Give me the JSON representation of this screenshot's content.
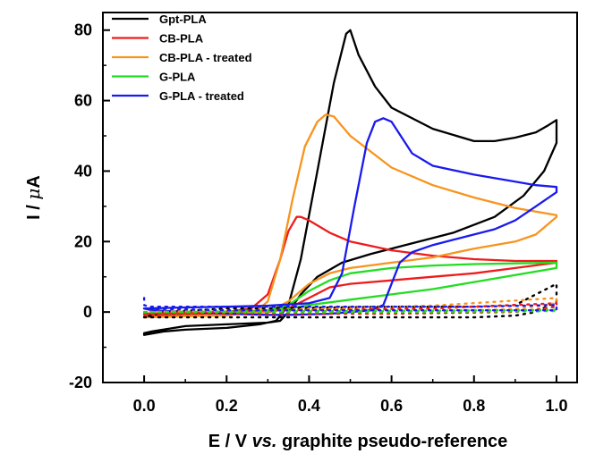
{
  "chart_data": {
    "type": "line",
    "xlabel_parts": [
      "E / V ",
      "vs.",
      " graphite pseudo-reference"
    ],
    "ylabel_main": "I / ",
    "ylabel_mu": "μ",
    "ylabel_unit": "A",
    "xlim": [
      -0.1,
      1.05
    ],
    "ylim": [
      -20,
      85
    ],
    "xticks": [
      0.0,
      0.2,
      0.4,
      0.6,
      0.8,
      1.0
    ],
    "xtick_labels": [
      "0.0",
      "0.2",
      "0.4",
      "0.6",
      "0.8",
      "1.0"
    ],
    "yticks": [
      -20,
      0,
      20,
      40,
      60,
      80
    ],
    "ytick_labels": [
      "-20",
      "0",
      "20",
      "40",
      "60",
      "80"
    ],
    "legend_position": "top-left",
    "series": [
      {
        "name": "Gpt-PLA",
        "color": "#000000",
        "x": [
          0.0,
          0.05,
          0.1,
          0.2,
          0.28,
          0.32,
          0.35,
          0.38,
          0.42,
          0.46,
          0.49,
          0.5,
          0.52,
          0.56,
          0.6,
          0.7,
          0.8,
          0.85,
          0.9,
          0.95,
          0.98,
          1.0,
          1.0,
          0.97,
          0.92,
          0.85,
          0.75,
          0.65,
          0.55,
          0.48,
          0.42,
          0.38,
          0.35,
          0.33,
          0.3,
          0.2,
          0.1,
          0.02,
          0.0,
          0.0
        ],
        "y": [
          -6.5,
          -5.5,
          -5,
          -4.5,
          -3.5,
          -2.5,
          2,
          15,
          40,
          65,
          79,
          80,
          73,
          64,
          58,
          52,
          48.5,
          48.5,
          49.5,
          51,
          53,
          54.5,
          48,
          40,
          33,
          27,
          22.5,
          19.5,
          16.5,
          14,
          10,
          5,
          0,
          -2.5,
          -3,
          -3.5,
          -4,
          -5.5,
          -6,
          -6.5
        ]
      },
      {
        "name": "CB-PLA",
        "color": "#ee1c1c",
        "x": [
          0.0,
          0.1,
          0.2,
          0.26,
          0.3,
          0.33,
          0.35,
          0.37,
          0.38,
          0.4,
          0.45,
          0.5,
          0.6,
          0.7,
          0.8,
          0.9,
          1.0,
          1.0,
          0.9,
          0.8,
          0.7,
          0.6,
          0.5,
          0.45,
          0.4,
          0.35,
          0.3,
          0.2,
          0.1,
          0.0,
          0.0
        ],
        "y": [
          -1,
          -0.5,
          0,
          1,
          5,
          15,
          23,
          27,
          27,
          26,
          22.5,
          20,
          17.5,
          16,
          15,
          14.5,
          14.5,
          14,
          12.5,
          11,
          10,
          9,
          8,
          7,
          4,
          1,
          0,
          -0.5,
          -0.8,
          -1,
          -1
        ]
      },
      {
        "name": "CB-PLA - treated",
        "color": "#f7941d",
        "x": [
          0.0,
          0.1,
          0.2,
          0.27,
          0.3,
          0.33,
          0.36,
          0.39,
          0.42,
          0.44,
          0.46,
          0.5,
          0.6,
          0.7,
          0.8,
          0.9,
          1.0,
          1.0,
          0.95,
          0.9,
          0.8,
          0.7,
          0.6,
          0.5,
          0.45,
          0.4,
          0.35,
          0.3,
          0.2,
          0.1,
          0.0,
          0.0
        ],
        "y": [
          -1.5,
          -1.2,
          -1,
          0,
          3,
          15,
          32,
          47,
          54,
          56,
          55.5,
          50,
          41,
          36,
          32.5,
          29.5,
          27.5,
          27,
          22,
          20,
          18,
          15.5,
          14,
          12.5,
          11,
          8,
          3,
          0,
          -0.8,
          -1.2,
          -1.5,
          -1.5
        ]
      },
      {
        "name": "G-PLA",
        "color": "#22dd22",
        "x": [
          0.0,
          0.1,
          0.2,
          0.3,
          0.35,
          0.4,
          0.45,
          0.5,
          0.6,
          0.7,
          0.8,
          0.9,
          1.0,
          1.0,
          0.9,
          0.8,
          0.7,
          0.6,
          0.5,
          0.4,
          0.35,
          0.3,
          0.2,
          0.1,
          0.0,
          0.0
        ],
        "y": [
          -0.5,
          -0.2,
          0,
          0.5,
          2,
          6,
          9,
          11,
          12.5,
          13.2,
          13.6,
          13.8,
          14,
          12.5,
          10.5,
          8.5,
          6.5,
          5,
          3.5,
          2,
          1,
          0.5,
          0,
          -0.3,
          -0.5,
          -0.5
        ]
      },
      {
        "name": "G-PLA - treated",
        "color": "#1a1aee",
        "x": [
          0.0,
          0.1,
          0.2,
          0.3,
          0.4,
          0.45,
          0.48,
          0.51,
          0.54,
          0.56,
          0.58,
          0.6,
          0.65,
          0.7,
          0.8,
          0.9,
          0.95,
          1.0,
          1.0,
          0.95,
          0.9,
          0.85,
          0.8,
          0.75,
          0.7,
          0.65,
          0.62,
          0.6,
          0.58,
          0.55,
          0.45,
          0.35,
          0.3,
          0.2,
          0.1,
          0.02,
          0.0,
          0.0
        ],
        "y": [
          1,
          1.3,
          1.5,
          1.8,
          2.5,
          4,
          11,
          30,
          48,
          54,
          55,
          54,
          45,
          41.5,
          39,
          37,
          36,
          35.5,
          34,
          30,
          26,
          23.5,
          22,
          20.5,
          19,
          17,
          14,
          8,
          2,
          0.5,
          -0.5,
          -0.8,
          -0.8,
          -0.5,
          0,
          0.5,
          1,
          1
        ]
      },
      {
        "name": "",
        "color": "#000000",
        "dash": true,
        "x": [
          0.0,
          0.2,
          0.4,
          0.6,
          0.8,
          0.9,
          0.95,
          1.0,
          1.0,
          0.95,
          0.9,
          0.8,
          0.6,
          0.4,
          0.2,
          0.05,
          0.0
        ],
        "y": [
          -1.5,
          -1.5,
          -1.5,
          -1.5,
          -1.5,
          -1,
          0,
          3,
          8,
          5,
          2,
          1.5,
          1.5,
          1.2,
          1,
          0,
          -1.5
        ]
      },
      {
        "name": "",
        "color": "#ee1c1c",
        "dash": true,
        "x": [
          0.0,
          0.3,
          0.6,
          0.9,
          1.0,
          1.0,
          0.7,
          0.3,
          0.0
        ],
        "y": [
          -0.5,
          -0.5,
          -0.5,
          0,
          1.5,
          2.5,
          1,
          0.5,
          -0.5
        ]
      },
      {
        "name": "",
        "color": "#f7941d",
        "dash": true,
        "x": [
          0.0,
          0.3,
          0.6,
          0.9,
          1.0,
          1.0,
          0.7,
          0.3,
          0.0
        ],
        "y": [
          0,
          0,
          0,
          0.8,
          2.5,
          4,
          1.8,
          0.5,
          0
        ]
      },
      {
        "name": "",
        "color": "#22dd22",
        "dash": true,
        "x": [
          0.0,
          0.3,
          0.6,
          0.9,
          1.0,
          1.0,
          0.6,
          0.3,
          0.0
        ],
        "y": [
          0,
          0,
          0,
          0.2,
          0.3,
          0.6,
          0.3,
          0.2,
          0
        ]
      },
      {
        "name": "",
        "color": "#1a1aee",
        "dash": true,
        "x": [
          0.0,
          0.0,
          0.01,
          0.2,
          0.5,
          0.8,
          1.0,
          1.0,
          0.6,
          0.2,
          0.0
        ],
        "y": [
          4,
          2,
          1.5,
          1.5,
          1.5,
          1.5,
          2,
          0.5,
          0.5,
          0.5,
          1
        ]
      }
    ]
  }
}
